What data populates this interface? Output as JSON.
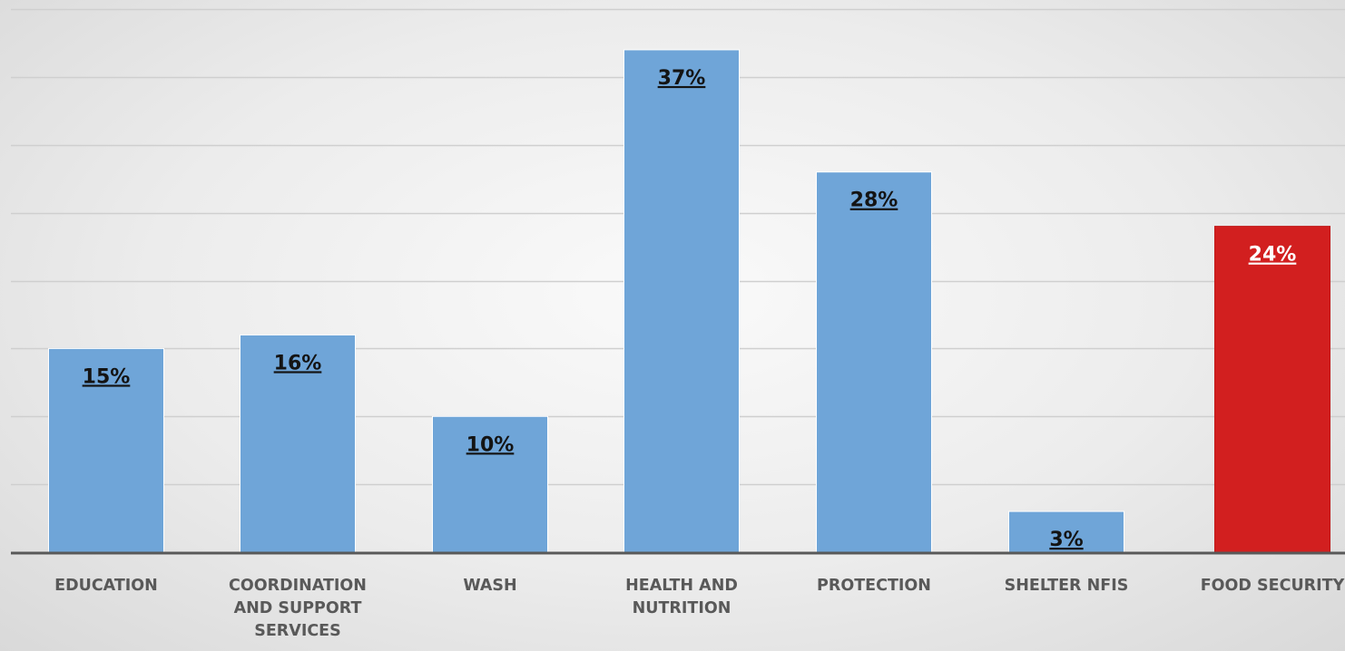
{
  "chart_data": {
    "type": "bar",
    "categories": [
      [
        "EDUCATION"
      ],
      [
        "COORDINATION",
        "AND SUPPORT",
        "SERVICES"
      ],
      [
        "WASH"
      ],
      [
        "HEALTH AND",
        "NUTRITION"
      ],
      [
        "PROTECTION"
      ],
      [
        "SHELTER NFIS"
      ],
      [
        "FOOD SECURITY"
      ]
    ],
    "values": [
      15,
      16,
      10,
      37,
      28,
      3,
      24
    ],
    "data_labels": [
      "15%",
      "16%",
      "10%",
      "37%",
      "28%",
      "3%",
      "24%"
    ],
    "ylim": [
      0,
      40
    ],
    "gridlines": [
      0,
      5,
      10,
      15,
      20,
      25,
      30,
      35,
      40
    ],
    "grid": true,
    "legend": "none",
    "colors": {
      "default_bar": "#6fa5d8",
      "highlight_bar": "#d21f1f",
      "default_label": "#141414",
      "highlight_label": "#ffffff",
      "axis": "#595959",
      "grid": "#cfcfcf"
    },
    "highlight_index": 6
  }
}
